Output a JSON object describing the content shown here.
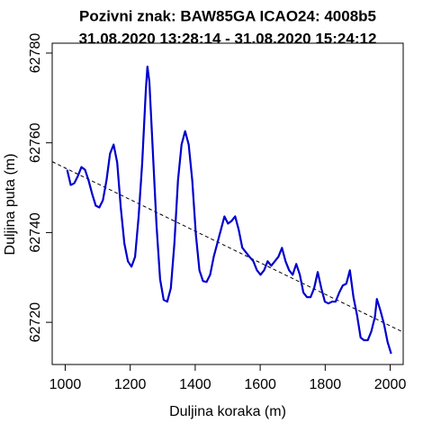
{
  "chart_data": {
    "type": "line",
    "title": "Pozivni znak: BAW85GA  ICAO24: 4008b5",
    "subtitle": "31.08.2020 13:28:14 - 31.08.2020 15:24:12",
    "x_label": "Duljina koraka (m)",
    "y_label": "Duljina puta (m)",
    "x": [
      1006,
      1017,
      1028,
      1039,
      1050,
      1061,
      1072,
      1083,
      1094,
      1105,
      1116,
      1127,
      1138,
      1149,
      1160,
      1171,
      1182,
      1193,
      1204,
      1215,
      1226,
      1237,
      1248,
      1253,
      1259,
      1270,
      1281,
      1292,
      1303,
      1314,
      1325,
      1336,
      1347,
      1358,
      1369,
      1380,
      1391,
      1402,
      1413,
      1424,
      1435,
      1446,
      1457,
      1468,
      1479,
      1490,
      1501,
      1512,
      1523,
      1534,
      1545,
      1556,
      1567,
      1579,
      1590,
      1601,
      1612,
      1623,
      1634,
      1645,
      1656,
      1667,
      1678,
      1689,
      1700,
      1711,
      1722,
      1733,
      1744,
      1755,
      1766,
      1777,
      1788,
      1799,
      1810,
      1821,
      1832,
      1843,
      1854,
      1865,
      1876,
      1887,
      1898,
      1909,
      1920,
      1931,
      1942,
      1953,
      1959,
      1970,
      1981,
      1992,
      2003
    ],
    "series": [
      {
        "color": "#0000cd",
        "values": [
          62754.0,
          62750.6,
          62751.0,
          62752.6,
          62754.6,
          62754.0,
          62751.6,
          62748.6,
          62746.0,
          62745.6,
          62747.2,
          62751.6,
          62757.6,
          62759.6,
          62755.6,
          62745.6,
          62737.6,
          62733.6,
          62732.4,
          62734.6,
          62743.6,
          62755.6,
          62771.6,
          62777.0,
          62773.6,
          62757.6,
          62741.6,
          62729.6,
          62725.0,
          62724.6,
          62727.6,
          62737.6,
          62751.6,
          62759.6,
          62762.6,
          62759.6,
          62751.6,
          62739.6,
          62731.6,
          62729.2,
          62729.0,
          62730.6,
          62734.6,
          62737.6,
          62740.6,
          62743.6,
          62742.0,
          62742.6,
          62743.6,
          62740.6,
          62736.6,
          62735.6,
          62734.6,
          62733.6,
          62731.6,
          62730.6,
          62731.6,
          62733.6,
          62732.6,
          62733.6,
          62734.6,
          62736.6,
          62733.6,
          62731.6,
          62730.6,
          62733.0,
          62730.6,
          62726.6,
          62725.6,
          62725.6,
          62727.6,
          62731.2,
          62727.6,
          62724.6,
          62724.2,
          62724.6,
          62724.6,
          62726.6,
          62728.2,
          62728.6,
          62731.6,
          62725.6,
          62721.6,
          62716.6,
          62716.0,
          62716.0,
          62718.0,
          62721.2,
          62725.2,
          62722.6,
          62719.6,
          62715.6,
          62713.0
        ]
      }
    ],
    "trendline": {
      "x": [
        960,
        2040
      ],
      "values": [
        62755.8,
        62717.8
      ],
      "color": "#000000",
      "dashed": true
    },
    "xlim": [
      960,
      2040
    ],
    "xticks": [
      1000,
      1200,
      1400,
      1600,
      1800,
      2000
    ],
    "ylim": [
      62710.6,
      62782.2
    ],
    "yticks": [
      62720,
      62740,
      62760,
      62780
    ]
  }
}
